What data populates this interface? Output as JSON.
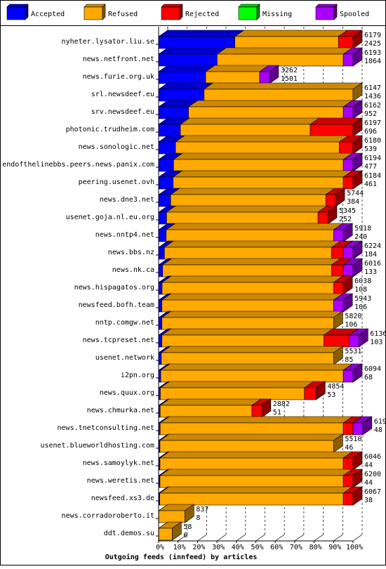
{
  "chart_data": {
    "type": "bar",
    "stacked": true,
    "orientation": "horizontal",
    "title": "Outgoing feeds (innfeed) by articles",
    "legend_position": "top",
    "series": [
      {
        "name": "Accepted",
        "color": "#0000ff"
      },
      {
        "name": "Refused",
        "color": "#ffaa00"
      },
      {
        "name": "Rejected",
        "color": "#ff0000"
      },
      {
        "name": "Missing",
        "color": "#00ff00"
      },
      {
        "name": "Spooled",
        "color": "#aa00ff"
      }
    ],
    "x_ticks": [
      "0%",
      "10%",
      "20%",
      "30%",
      "40%",
      "50%",
      "60%",
      "70%",
      "80%",
      "90%",
      "100%"
    ],
    "xlim": [
      0,
      100
    ],
    "grid": true,
    "rows": [
      {
        "label": "nyheter.lysator.liu.se",
        "total": "6179",
        "accepted": "2425",
        "pct": [
          39.2,
          53.3,
          7.5,
          0,
          0
        ]
      },
      {
        "label": "news.netfront.net",
        "total": "6193",
        "accepted": "1864",
        "pct": [
          30.1,
          64.9,
          0,
          0,
          5.0
        ]
      },
      {
        "label": "news.furie.org.uk",
        "total": "3262",
        "accepted": "1501",
        "pct": [
          24.2,
          27.8,
          0,
          0,
          5.0
        ]
      },
      {
        "label": "srl.newsdeef.eu",
        "total": "6147",
        "accepted": "1436",
        "pct": [
          23.4,
          76.6,
          0,
          0,
          0
        ]
      },
      {
        "label": "srv.newsdeef.eu",
        "total": "6162",
        "accepted": "952",
        "pct": [
          15.4,
          79.6,
          0,
          0,
          5.0
        ]
      },
      {
        "label": "photonic.trudheim.com",
        "total": "6197",
        "accepted": "696",
        "pct": [
          11.2,
          66.8,
          22.0,
          0,
          0
        ]
      },
      {
        "label": "news.sonologic.net",
        "total": "6180",
        "accepted": "539",
        "pct": [
          8.7,
          84.3,
          7.0,
          0,
          0
        ]
      },
      {
        "label": "endofthelinebbs.peers.news.panix.com",
        "total": "6194",
        "accepted": "477",
        "pct": [
          7.7,
          87.3,
          0,
          0,
          5.0
        ]
      },
      {
        "label": "peering.usenet.ovh",
        "total": "6184",
        "accepted": "461",
        "pct": [
          7.5,
          87.5,
          5.0,
          0,
          0
        ]
      },
      {
        "label": "news.dne3.net",
        "total": "5744",
        "accepted": "384",
        "pct": [
          6.2,
          79.8,
          5.0,
          0,
          0
        ]
      },
      {
        "label": "usenet.goja.nl.eu.org",
        "total": "5345",
        "accepted": "252",
        "pct": [
          4.1,
          77.9,
          5.0,
          0,
          0
        ]
      },
      {
        "label": "news.nntp4.net",
        "total": "5918",
        "accepted": "240",
        "pct": [
          3.9,
          86.1,
          0,
          0,
          5.0
        ]
      },
      {
        "label": "news.bbs.nz",
        "total": "6224",
        "accepted": "184",
        "pct": [
          3.0,
          86.0,
          6.0,
          0,
          5.0
        ]
      },
      {
        "label": "news.nk.ca",
        "total": "6016",
        "accepted": "133",
        "pct": [
          2.1,
          86.9,
          6.0,
          0,
          5.0
        ]
      },
      {
        "label": "news.hispagatos.org",
        "total": "6038",
        "accepted": "108",
        "pct": [
          1.8,
          88.2,
          5.0,
          0,
          0
        ]
      },
      {
        "label": "newsfeed.bofh.team",
        "total": "5943",
        "accepted": "106",
        "pct": [
          1.7,
          88.3,
          0,
          0,
          5.0
        ]
      },
      {
        "label": "nntp.comgw.net",
        "total": "5820",
        "accepted": "106",
        "pct": [
          1.7,
          88.3,
          0,
          0,
          0
        ]
      },
      {
        "label": "news.tcpreset.net",
        "total": "6136",
        "accepted": "103",
        "pct": [
          1.7,
          83.3,
          13.0,
          0,
          5.0
        ]
      },
      {
        "label": "usenet.network",
        "total": "5531",
        "accepted": "85",
        "pct": [
          1.4,
          88.6,
          0,
          0,
          0
        ]
      },
      {
        "label": "i2pn.org",
        "total": "6094",
        "accepted": "68",
        "pct": [
          1.1,
          93.9,
          0,
          0,
          5.0
        ]
      },
      {
        "label": "news.quux.org",
        "total": "4854",
        "accepted": "53",
        "pct": [
          0.9,
          74.1,
          6.0,
          0,
          0
        ]
      },
      {
        "label": "news.chmurka.net",
        "total": "2882",
        "accepted": "51",
        "pct": [
          0.8,
          47.2,
          5.0,
          0,
          0
        ]
      },
      {
        "label": "news.tnetconsulting.net",
        "total": "6199",
        "accepted": "48",
        "pct": [
          0.8,
          94.2,
          5.0,
          0,
          5.0
        ]
      },
      {
        "label": "usenet.blueworldhosting.com",
        "total": "5510",
        "accepted": "46",
        "pct": [
          0.7,
          89.3,
          0,
          0,
          0
        ]
      },
      {
        "label": "news.samoylyk.net",
        "total": "6046",
        "accepted": "44",
        "pct": [
          0.7,
          94.3,
          5.0,
          0,
          0
        ]
      },
      {
        "label": "news.weretis.net",
        "total": "6200",
        "accepted": "44",
        "pct": [
          0.7,
          94.3,
          5.0,
          0,
          0
        ]
      },
      {
        "label": "newsfeed.xs3.de",
        "total": "6067",
        "accepted": "38",
        "pct": [
          0.6,
          94.4,
          5.0,
          0,
          0
        ]
      },
      {
        "label": "news.corradoroberto.it",
        "total": "837",
        "accepted": "8",
        "pct": [
          0.1,
          13.4,
          0,
          0,
          0
        ]
      },
      {
        "label": "ddt.demos.su",
        "total": "58",
        "accepted": "6",
        "pct": [
          0.1,
          6.9,
          0,
          0,
          0
        ]
      }
    ]
  }
}
